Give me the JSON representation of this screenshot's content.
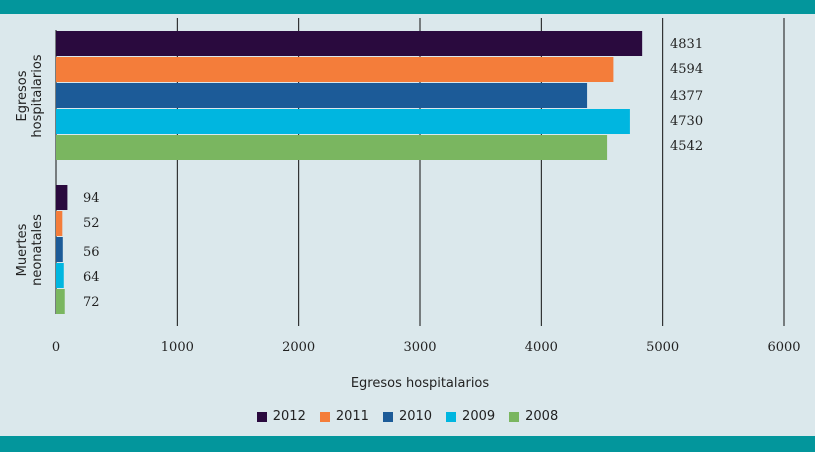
{
  "chart_data": {
    "type": "bar",
    "orientation": "horizontal",
    "categories": [
      "Egresos hospitalarios",
      "Muertes neonatales"
    ],
    "category_label_lines": [
      [
        "Egresos",
        "hospitalarios"
      ],
      [
        "Muertes",
        "neonatales"
      ]
    ],
    "series": [
      {
        "name": "2012",
        "color": "#2a0a3e",
        "values": [
          4831,
          94
        ]
      },
      {
        "name": "2011",
        "color": "#f47d3a",
        "values": [
          4594,
          52
        ]
      },
      {
        "name": "2010",
        "color": "#1c5b98",
        "values": [
          4377,
          56
        ]
      },
      {
        "name": "2009",
        "color": "#00b6e0",
        "values": [
          4730,
          64
        ]
      },
      {
        "name": "2008",
        "color": "#7ab660",
        "values": [
          4542,
          72
        ]
      }
    ],
    "xlabel": "Egresos hospitalarios",
    "xlim": [
      0,
      6000
    ],
    "xticks": [
      0,
      1000,
      2000,
      3000,
      4000,
      5000,
      6000
    ],
    "grid": "vertical",
    "legend_position": "bottom"
  }
}
